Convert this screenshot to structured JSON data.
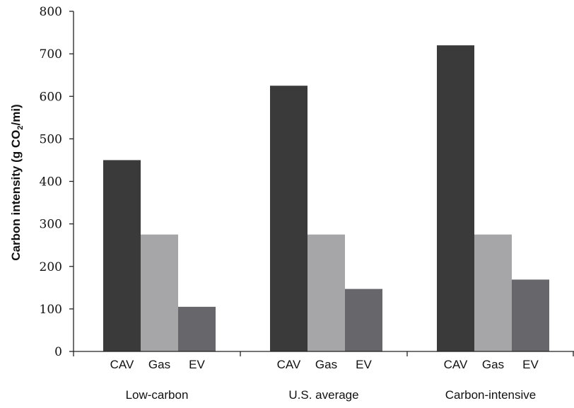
{
  "chart_data": {
    "type": "bar",
    "ylabel": "Carbon intensity (g CO2/mi)",
    "ylabel_parts": {
      "before": "Carbon intensity (g CO",
      "sub": "2",
      "after": "/mi)"
    },
    "ylim": [
      0,
      800
    ],
    "yticks": [
      0,
      100,
      200,
      300,
      400,
      500,
      600,
      700,
      800
    ],
    "grid": false,
    "groups": [
      {
        "label": "Low-carbon",
        "bars": [
          {
            "label": "CAV",
            "value": 450,
            "color": "#3a3a3a"
          },
          {
            "label": "Gas",
            "value": 275,
            "color": "#a6a6a8"
          },
          {
            "label": "EV",
            "value": 105,
            "color": "#67676b"
          }
        ]
      },
      {
        "label": "U.S. average",
        "bars": [
          {
            "label": "CAV",
            "value": 625,
            "color": "#3a3a3a"
          },
          {
            "label": "Gas",
            "value": 275,
            "color": "#a6a6a8"
          },
          {
            "label": "EV",
            "value": 147,
            "color": "#67676b"
          }
        ]
      },
      {
        "label": "Carbon-intensive",
        "bars": [
          {
            "label": "CAV",
            "value": 720,
            "color": "#3a3a3a"
          },
          {
            "label": "Gas",
            "value": 275,
            "color": "#a6a6a8"
          },
          {
            "label": "EV",
            "value": 169,
            "color": "#67676b"
          }
        ]
      }
    ]
  }
}
